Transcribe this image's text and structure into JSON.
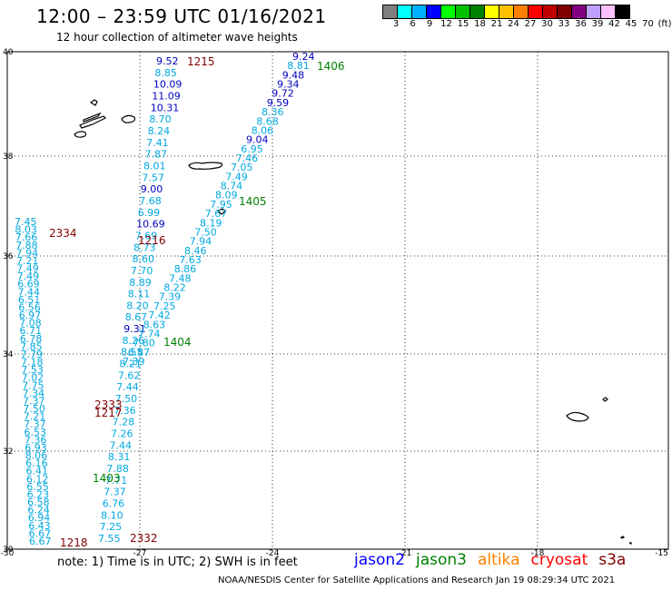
{
  "header": {
    "title": "12:00 – 23:59 UTC 01/16/2021",
    "subtitle": "12 hour collection of altimeter wave heights"
  },
  "legend": {
    "colors": [
      "#808080",
      "#00ffff",
      "#00b0ff",
      "#0000ff",
      "#00ff00",
      "#00c000",
      "#008000",
      "#ffff00",
      "#ffc000",
      "#ff8000",
      "#ff0000",
      "#c00000",
      "#800000",
      "#800080",
      "#c0a0ff",
      "#ffc0ff",
      "#000000"
    ],
    "labels": [
      "3",
      "6",
      "9",
      "12",
      "15",
      "18",
      "21",
      "24",
      "27",
      "30",
      "33",
      "36",
      "39",
      "42",
      "45",
      "70",
      "(ft)"
    ]
  },
  "axes": {
    "lat_labels": [
      "40",
      "38",
      "36",
      "34",
      "32",
      "30"
    ],
    "lon_labels": [
      "-30",
      "-27",
      "-24",
      "-21",
      "-18",
      "-15"
    ]
  },
  "passes": [
    {
      "label": "1215",
      "color": "#800000"
    },
    {
      "label": "1406",
      "color": "#008000"
    },
    {
      "label": "1405",
      "color": "#008000"
    },
    {
      "label": "2334",
      "color": "#800000"
    },
    {
      "label": "1216",
      "color": "#800000"
    },
    {
      "label": "1404",
      "color": "#008000"
    },
    {
      "label": "2333",
      "color": "#800000"
    },
    {
      "label": "1217",
      "color": "#800000"
    },
    {
      "label": "1403",
      "color": "#008000"
    },
    {
      "label": "2332",
      "color": "#800000"
    },
    {
      "label": "1218",
      "color": "#800000"
    }
  ],
  "tracks": {
    "track_1215": [
      "9.52",
      "8.85",
      "10.09",
      "11.09",
      "10.31",
      "8.70",
      "8.24",
      "7.41",
      "7.87",
      "8.01",
      "7.57",
      "9.00",
      "7.68",
      "6.99",
      "10.69",
      "7.69",
      "8.73",
      "8.60",
      "7.70",
      "8.89",
      "8.11",
      "8.20",
      "8.67",
      "9.31",
      "8.26",
      "8.55",
      "8.21",
      "7.62",
      "7.44",
      "7.50",
      "7.36",
      "7.28",
      "7.26",
      "7.44",
      "8.31",
      "7.88",
      "7.71",
      "7.37",
      "6.76",
      "8.10",
      "7.25",
      "7.55"
    ],
    "track_1406": [
      "9.24",
      "8.81",
      "9.48",
      "9.34",
      "9.72",
      "9.59",
      "8.36",
      "8.68",
      "8.06",
      "9.04",
      "6.95",
      "7.46",
      "7.05",
      "7.49",
      "8.74",
      "8.09",
      "7.95",
      "7.67",
      "8.19",
      "7.50",
      "7.94",
      "8.46",
      "7.63",
      "8.86",
      "7.48",
      "8.22",
      "7.39",
      "7.25",
      "7.42",
      "8.63",
      "7.74",
      "7.80",
      "6.87",
      "7.39"
    ],
    "track_2334": [
      "7.45",
      "8.03",
      "7.66",
      "7.88",
      "7.94",
      "7.21",
      "7.49",
      "7.49",
      "6.69",
      "7.44",
      "6.51",
      "6.56",
      "6.97",
      "7.08",
      "6.71",
      "6.78",
      "7.85",
      "7.79",
      "7.18",
      "7.53",
      "7.02",
      "7.75",
      "7.34",
      "7.37",
      "7.50",
      "7.21",
      "7.37",
      "6.53",
      "7.36",
      "6.93",
      "8.06",
      "6.16",
      "6.41",
      "6.12",
      "6.55",
      "6.23",
      "6.58",
      "6.24",
      "6.94",
      "6.43",
      "6.67",
      "6.67"
    ]
  },
  "footer": {
    "note": "note:  1) Time is in UTC; 2) SWH is in feet",
    "satellites": [
      {
        "name": "jason2",
        "color": "#0000ff"
      },
      {
        "name": "jason3",
        "color": "#008000"
      },
      {
        "name": "altika",
        "color": "#ff8000"
      },
      {
        "name": "cryosat",
        "color": "#ff0000"
      },
      {
        "name": "s3a",
        "color": "#800000"
      }
    ],
    "credit": "NOAA/NESDIS Center for Satellite Applications and Research    Jan 19 08:29:34 UTC 2021"
  }
}
